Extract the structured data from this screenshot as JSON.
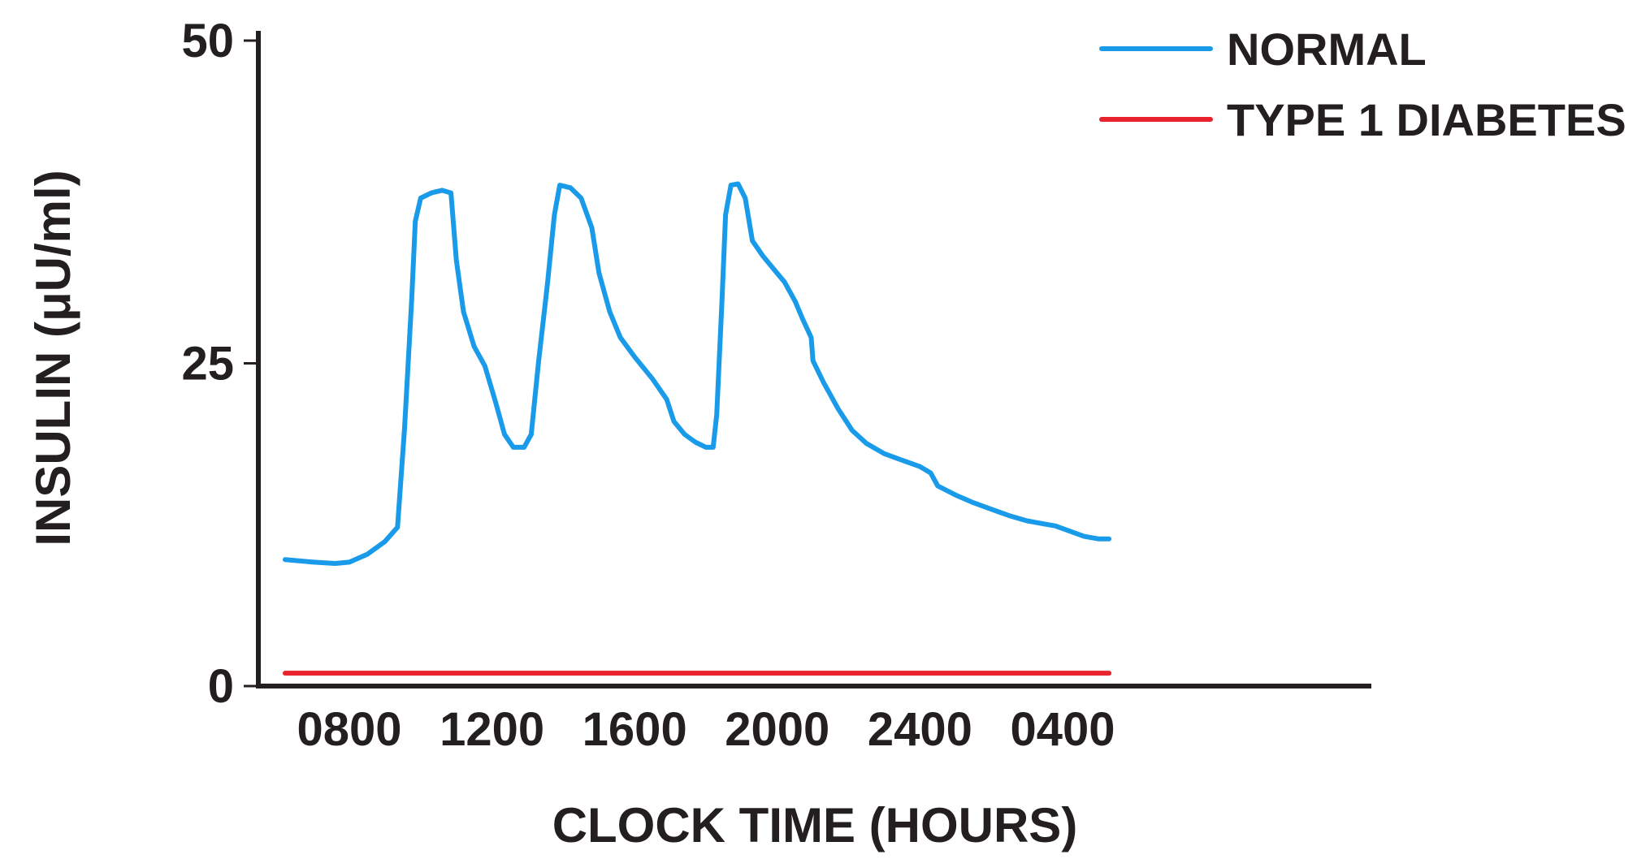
{
  "chart_data": {
    "type": "line",
    "title": "",
    "xlabel": "CLOCK TIME (HOURS)",
    "ylabel": "INSULIN (μU/ml)",
    "x_tick_labels": [
      "0800",
      "1200",
      "1600",
      "2000",
      "2400",
      "0400"
    ],
    "x_tick_hours": [
      8,
      12,
      16,
      20,
      24,
      28
    ],
    "x_unit": "clock hour (24-hour clock; 24 = midnight)",
    "xlim": [
      6.2,
      31
    ],
    "y_ticks": [
      0,
      25,
      50
    ],
    "y_tick_labels": [
      "0",
      "25",
      "50"
    ],
    "ylim": [
      0,
      50
    ],
    "grid": false,
    "legend_position": "top-right",
    "series": [
      {
        "name": "NORMAL",
        "color": "#1a9bea",
        "points": [
          [
            6.2,
            9.8
          ],
          [
            7.0,
            9.6
          ],
          [
            7.6,
            9.5
          ],
          [
            8.0,
            9.6
          ],
          [
            8.5,
            10.2
          ],
          [
            9.0,
            11.2
          ],
          [
            9.35,
            12.3
          ],
          [
            9.55,
            20.0
          ],
          [
            9.75,
            30.0
          ],
          [
            9.85,
            36.0
          ],
          [
            10.0,
            37.8
          ],
          [
            10.3,
            38.2
          ],
          [
            10.6,
            38.4
          ],
          [
            10.85,
            38.2
          ],
          [
            11.0,
            33.0
          ],
          [
            11.2,
            29.0
          ],
          [
            11.5,
            26.3
          ],
          [
            11.8,
            24.8
          ],
          [
            12.1,
            22.0
          ],
          [
            12.35,
            19.5
          ],
          [
            12.6,
            18.5
          ],
          [
            12.9,
            18.5
          ],
          [
            13.1,
            19.5
          ],
          [
            13.3,
            25.0
          ],
          [
            13.55,
            31.0
          ],
          [
            13.75,
            36.5
          ],
          [
            13.9,
            38.8
          ],
          [
            14.2,
            38.6
          ],
          [
            14.5,
            37.8
          ],
          [
            14.8,
            35.5
          ],
          [
            15.0,
            32.0
          ],
          [
            15.3,
            29.0
          ],
          [
            15.6,
            27.0
          ],
          [
            16.0,
            25.5
          ],
          [
            16.5,
            23.8
          ],
          [
            16.9,
            22.2
          ],
          [
            17.1,
            20.5
          ],
          [
            17.4,
            19.5
          ],
          [
            17.7,
            18.9
          ],
          [
            18.0,
            18.5
          ],
          [
            18.2,
            18.5
          ],
          [
            18.3,
            21.0
          ],
          [
            18.45,
            30.0
          ],
          [
            18.55,
            36.5
          ],
          [
            18.7,
            38.8
          ],
          [
            18.9,
            38.9
          ],
          [
            19.1,
            37.8
          ],
          [
            19.3,
            34.5
          ],
          [
            19.6,
            33.3
          ],
          [
            19.9,
            32.3
          ],
          [
            20.2,
            31.3
          ],
          [
            20.5,
            29.8
          ],
          [
            20.7,
            28.5
          ],
          [
            20.95,
            27.0
          ],
          [
            21.0,
            25.2
          ],
          [
            21.3,
            23.5
          ],
          [
            21.7,
            21.5
          ],
          [
            22.1,
            19.8
          ],
          [
            22.5,
            18.8
          ],
          [
            23.0,
            18.0
          ],
          [
            23.5,
            17.5
          ],
          [
            24.0,
            17.0
          ],
          [
            24.3,
            16.5
          ],
          [
            24.5,
            15.5
          ],
          [
            25.0,
            14.8
          ],
          [
            25.5,
            14.2
          ],
          [
            26.0,
            13.7
          ],
          [
            26.5,
            13.2
          ],
          [
            27.0,
            12.8
          ],
          [
            27.4,
            12.6
          ],
          [
            27.8,
            12.4
          ],
          [
            28.2,
            12.0
          ],
          [
            28.6,
            11.6
          ],
          [
            29.0,
            11.4
          ],
          [
            29.3,
            11.4
          ]
        ]
      },
      {
        "name": "TYPE 1 DIABETES",
        "color": "#e8232b",
        "points": [
          [
            6.2,
            1.0
          ],
          [
            29.3,
            1.0
          ]
        ]
      }
    ]
  }
}
